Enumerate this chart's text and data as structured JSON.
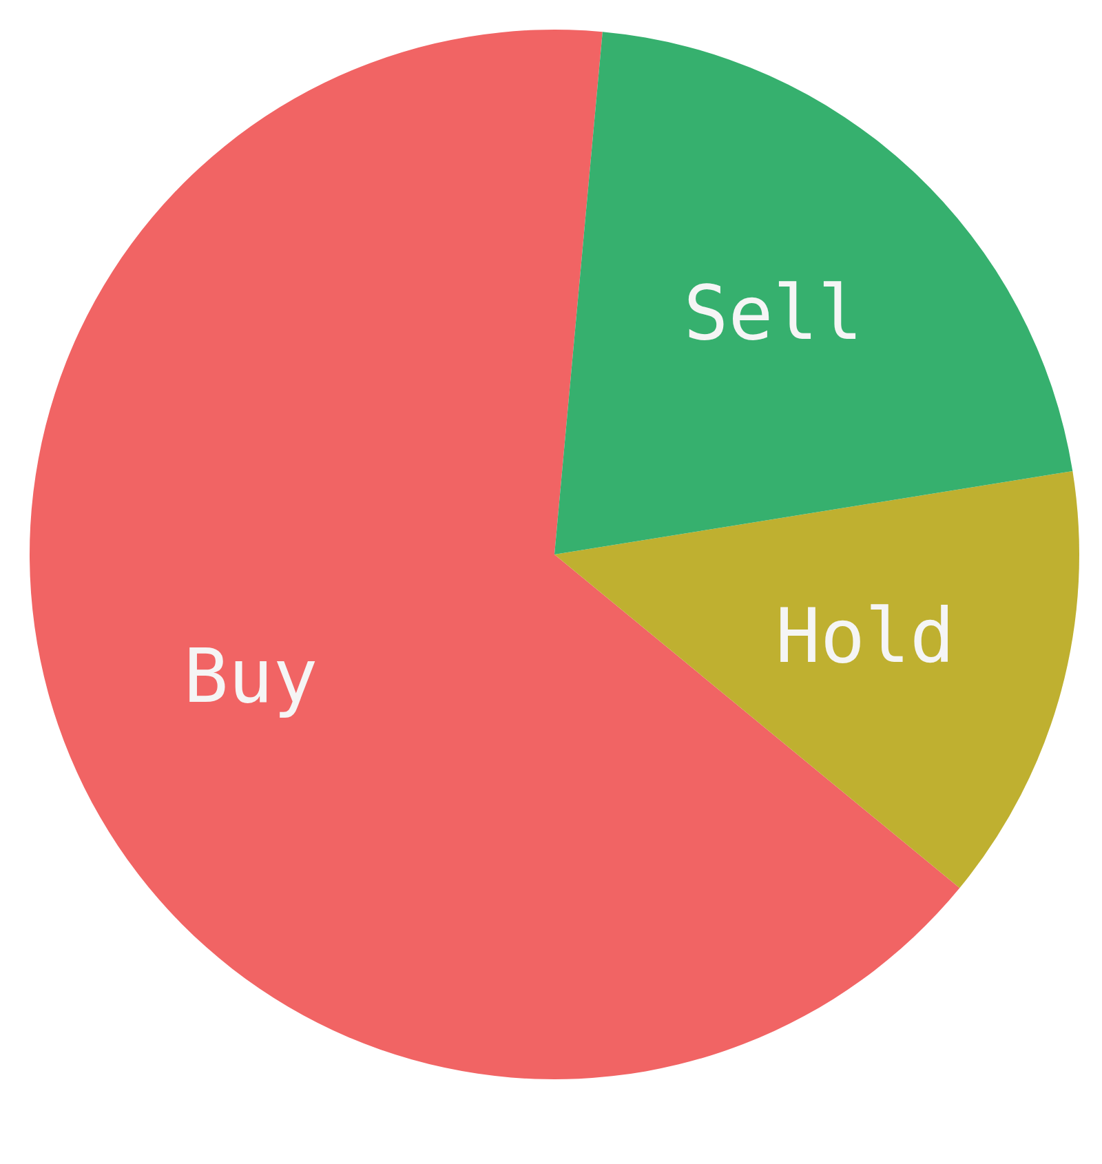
{
  "chart_data": {
    "type": "pie",
    "categories": [
      "Buy",
      "Hold",
      "Sell"
    ],
    "values": [
      65.5,
      13.5,
      21
    ],
    "colors": [
      "#f16464",
      "#bfb030",
      "#36b06e"
    ]
  }
}
